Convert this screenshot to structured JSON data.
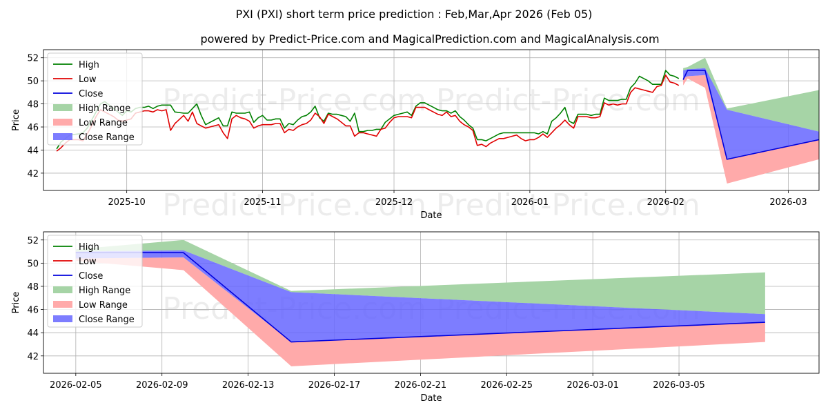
{
  "title_line1": "PXI (PXI) short term price prediction : Feb,Mar,Apr 2026 (Feb 05)",
  "title_line2": "powered by Predict-Price.com and MagicalPrediction.com and MagicalAnalysis.com",
  "watermark": "Predict-Price.com",
  "colors": {
    "high": "#008000",
    "low": "#e00000",
    "close": "#0000dd",
    "high_range": "#a6d4a6",
    "low_range": "#ffaaaa",
    "close_range": "#6666ff",
    "grid": "#b0b0b0"
  },
  "chart_data": [
    {
      "type": "line",
      "title": "",
      "xlabel": "Date",
      "ylabel": "Price",
      "x_type": "day_offset_from_2025-09-15",
      "xlim": [
        -3,
        174
      ],
      "ylim": [
        40.5,
        52.7
      ],
      "yticks": [
        42,
        44,
        46,
        48,
        50,
        52
      ],
      "xticks": [
        {
          "x": 16,
          "label": "2025-10"
        },
        {
          "x": 47,
          "label": "2025-11"
        },
        {
          "x": 77,
          "label": "2025-12"
        },
        {
          "x": 108,
          "label": "2026-01"
        },
        {
          "x": 139,
          "label": "2026-02"
        },
        {
          "x": 167,
          "label": "2026-03"
        }
      ],
      "grid": true,
      "legend_position": "top-left",
      "legend": [
        "High",
        "Low",
        "Close",
        "High Range",
        "Low Range",
        "Close Range"
      ],
      "high": {
        "x": [
          0,
          1,
          2,
          3,
          5,
          6,
          7,
          8,
          9,
          10,
          11,
          12,
          13,
          14,
          15,
          16,
          17,
          18,
          19,
          20,
          21,
          22,
          23,
          24,
          25,
          26,
          27,
          29,
          30,
          31,
          32,
          33,
          34,
          35,
          36,
          37,
          38,
          39,
          40,
          41,
          42,
          43,
          44,
          45,
          46,
          47,
          48,
          49,
          50,
          51,
          52,
          53,
          54,
          55,
          56,
          57,
          58,
          59,
          60,
          61,
          62,
          63,
          64,
          65,
          66,
          67,
          68,
          69,
          70,
          71,
          72,
          73,
          74,
          75,
          76,
          77,
          78,
          79,
          80,
          81,
          82,
          83,
          84,
          85,
          86,
          87,
          88,
          89,
          90,
          91,
          92,
          93,
          94,
          95,
          96,
          97,
          98,
          99,
          100,
          101,
          102,
          103,
          104,
          105,
          106,
          107,
          108,
          109,
          110,
          111,
          112,
          113,
          114,
          115,
          116,
          117,
          118,
          119,
          120,
          121,
          122,
          123,
          124,
          125,
          126,
          127,
          128,
          129,
          130,
          131,
          132,
          133,
          134,
          135,
          136,
          137,
          138,
          139,
          140,
          141,
          142
        ],
        "y": [
          44.1,
          44.7,
          45.0,
          45.3,
          45.4,
          45.5,
          45.9,
          46.6,
          47.3,
          48.0,
          48.2,
          47.9,
          47.6,
          47.3,
          47.0,
          47.4,
          47.3,
          47.6,
          47.7,
          47.7,
          47.8,
          47.6,
          47.8,
          47.9,
          47.9,
          47.9,
          47.3,
          47.2,
          47.2,
          47.6,
          48.0,
          47.0,
          46.2,
          46.4,
          46.6,
          46.8,
          46.1,
          46.1,
          47.3,
          47.2,
          47.2,
          47.2,
          47.3,
          46.4,
          46.8,
          47.0,
          46.6,
          46.6,
          46.7,
          46.7,
          45.9,
          46.3,
          46.2,
          46.6,
          46.9,
          47.0,
          47.3,
          47.8,
          46.8,
          46.5,
          47.2,
          47.1,
          47.1,
          47.0,
          46.9,
          46.5,
          47.2,
          45.6,
          45.6,
          45.7,
          45.7,
          45.8,
          45.8,
          46.4,
          46.7,
          47.0,
          47.1,
          47.2,
          47.3,
          47.0,
          47.8,
          48.1,
          48.1,
          47.9,
          47.7,
          47.5,
          47.4,
          47.4,
          47.2,
          47.4,
          46.9,
          46.6,
          46.2,
          45.9,
          44.9,
          44.9,
          44.8,
          45.0,
          45.2,
          45.4,
          45.5,
          45.5,
          45.5,
          45.5,
          45.5,
          45.5,
          45.5,
          45.5,
          45.4,
          45.6,
          45.4,
          46.5,
          46.8,
          47.2,
          47.7,
          46.5,
          46.3,
          47.1,
          47.1,
          47.1,
          47.0,
          47.1,
          47.1,
          48.5,
          48.3,
          48.3,
          48.3,
          48.4,
          48.4,
          49.4,
          49.8,
          50.4,
          50.2,
          50.0,
          49.7,
          49.7,
          49.7,
          50.9,
          50.5,
          50.4,
          50.2
        ]
      },
      "low": {
        "x": [
          0,
          1,
          2,
          3,
          5,
          6,
          7,
          8,
          9,
          10,
          11,
          12,
          13,
          14,
          15,
          16,
          17,
          18,
          19,
          20,
          21,
          22,
          23,
          24,
          25,
          26,
          27,
          29,
          30,
          31,
          32,
          33,
          34,
          35,
          36,
          37,
          38,
          39,
          40,
          41,
          42,
          43,
          44,
          45,
          46,
          47,
          48,
          49,
          50,
          51,
          52,
          53,
          54,
          55,
          56,
          57,
          58,
          59,
          60,
          61,
          62,
          63,
          64,
          65,
          66,
          67,
          68,
          69,
          70,
          71,
          72,
          73,
          74,
          75,
          76,
          77,
          78,
          79,
          80,
          81,
          82,
          83,
          84,
          85,
          86,
          87,
          88,
          89,
          90,
          91,
          92,
          93,
          94,
          95,
          96,
          97,
          98,
          99,
          100,
          101,
          102,
          103,
          104,
          105,
          106,
          107,
          108,
          109,
          110,
          111,
          112,
          113,
          114,
          115,
          116,
          117,
          118,
          119,
          120,
          121,
          122,
          123,
          124,
          125,
          126,
          127,
          128,
          129,
          130,
          131,
          132,
          133,
          134,
          135,
          136,
          137,
          138,
          139,
          140,
          141,
          142
        ],
        "y": [
          43.9,
          44.2,
          44.6,
          44.9,
          44.9,
          44.8,
          45.4,
          46.1,
          46.9,
          47.5,
          47.3,
          47.1,
          46.9,
          46.6,
          46.5,
          46.6,
          46.7,
          47.2,
          47.3,
          47.4,
          47.4,
          47.3,
          47.5,
          47.4,
          47.5,
          45.7,
          46.3,
          47.0,
          46.5,
          47.3,
          46.3,
          46.1,
          45.9,
          46.0,
          46.1,
          46.2,
          45.5,
          45.0,
          46.7,
          47.0,
          46.8,
          46.7,
          46.5,
          45.9,
          46.1,
          46.2,
          46.2,
          46.2,
          46.3,
          46.3,
          45.5,
          45.8,
          45.7,
          46.0,
          46.2,
          46.3,
          46.6,
          47.2,
          46.9,
          46.3,
          47.1,
          46.9,
          46.7,
          46.4,
          46.1,
          46.1,
          45.2,
          45.5,
          45.5,
          45.4,
          45.3,
          45.2,
          45.8,
          45.9,
          46.4,
          46.8,
          46.9,
          46.9,
          46.9,
          46.8,
          47.7,
          47.7,
          47.7,
          47.5,
          47.3,
          47.1,
          47.0,
          47.3,
          46.9,
          47.0,
          46.5,
          46.2,
          46.0,
          45.7,
          44.4,
          44.5,
          44.3,
          44.6,
          44.8,
          45.0,
          45.0,
          45.1,
          45.2,
          45.3,
          45.0,
          44.8,
          44.9,
          44.9,
          45.1,
          45.4,
          45.1,
          45.5,
          45.9,
          46.2,
          46.6,
          46.2,
          45.9,
          46.9,
          46.9,
          46.9,
          46.8,
          46.8,
          46.9,
          48.1,
          47.9,
          48.0,
          47.9,
          48.0,
          48.0,
          49.0,
          49.4,
          49.3,
          49.2,
          49.1,
          49.0,
          49.5,
          49.6,
          50.5,
          49.9,
          49.8,
          49.6
        ]
      },
      "forecast_x": [
        143,
        144,
        148,
        153,
        174
      ],
      "close": [
        50.1,
        50.9,
        50.9,
        43.2,
        44.9
      ],
      "high_upper": [
        51.1,
        51.2,
        52.0,
        47.6,
        49.2
      ],
      "low_lower": [
        49.6,
        50.2,
        49.4,
        41.1,
        43.2
      ],
      "close_upper": [
        50.9,
        51.0,
        51.1,
        47.5,
        45.6
      ],
      "close_lower": [
        50.2,
        50.4,
        50.5,
        43.2,
        44.9
      ]
    },
    {
      "type": "line",
      "title": "",
      "xlabel": "Date",
      "ylabel": "Price",
      "x_type": "day_offset_from_2026-02-05",
      "xlim": [
        -1.5,
        34.5
      ],
      "ylim": [
        40.5,
        52.7
      ],
      "yticks": [
        42,
        44,
        46,
        48,
        50,
        52
      ],
      "xticks": [
        {
          "x": 0,
          "label": "2026-02-05"
        },
        {
          "x": 4,
          "label": "2026-02-09"
        },
        {
          "x": 8,
          "label": "2026-02-13"
        },
        {
          "x": 12,
          "label": "2026-02-17"
        },
        {
          "x": 16,
          "label": "2026-02-21"
        },
        {
          "x": 20,
          "label": "2026-02-25"
        },
        {
          "x": 24,
          "label": "2026-03-01"
        },
        {
          "x": 28,
          "label": "2026-03-05"
        }
      ],
      "grid": true,
      "legend_position": "top-left",
      "legend": [
        "High",
        "Low",
        "Close",
        "High Range",
        "Low Range",
        "Close Range"
      ],
      "forecast_x": [
        0,
        5,
        10,
        32
      ],
      "close": [
        50.9,
        50.9,
        43.2,
        44.9
      ],
      "high_upper": [
        51.2,
        52.0,
        47.6,
        49.2
      ],
      "low_lower": [
        50.2,
        49.4,
        41.1,
        43.2
      ],
      "close_upper": [
        51.0,
        51.1,
        47.5,
        45.6
      ],
      "close_lower": [
        50.4,
        50.5,
        43.2,
        44.9
      ]
    }
  ]
}
